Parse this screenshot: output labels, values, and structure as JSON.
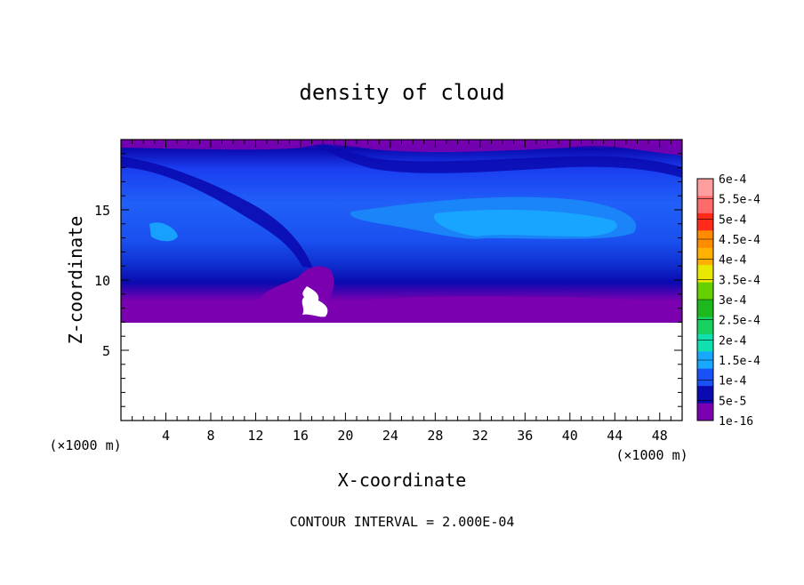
{
  "chart_data": {
    "type": "heatmap",
    "title": "density of cloud",
    "xlabel": "X-coordinate",
    "ylabel": "Z-coordinate",
    "x_unit_note": "(×1000 m)",
    "y_unit_note": "(×1000 m)",
    "x_ticks": [
      4,
      8,
      12,
      16,
      20,
      24,
      28,
      32,
      36,
      40,
      44,
      48
    ],
    "y_ticks": [
      5,
      10,
      15
    ],
    "xlim": [
      0,
      50
    ],
    "ylim": [
      0,
      20
    ],
    "footer": "CONTOUR INTERVAL = 2.000E-04",
    "colorbar": {
      "labels": [
        "6e-4",
        "5.5e-4",
        "5e-4",
        "4.5e-4",
        "4e-4",
        "3.5e-4",
        "3e-4",
        "2.5e-4",
        "2e-4",
        "1.5e-4",
        "1e-4",
        "5e-5",
        "1e-16"
      ],
      "colors": [
        "#ff9e9e",
        "#ff6a6a",
        "#ff2a1a",
        "#ff8c00",
        "#ffb000",
        "#e8e800",
        "#66d000",
        "#1cb81c",
        "#18d060",
        "#10e0b0",
        "#18a8ff",
        "#1a50f8",
        "#0a0ab0",
        "#7a00b0"
      ]
    },
    "field": {
      "description_levels": [
        "1e-16",
        "5e-5",
        "1e-4",
        "1.5e-4"
      ],
      "cloud_base_z": 7.0,
      "cloud_top_z": 20.0
    }
  }
}
